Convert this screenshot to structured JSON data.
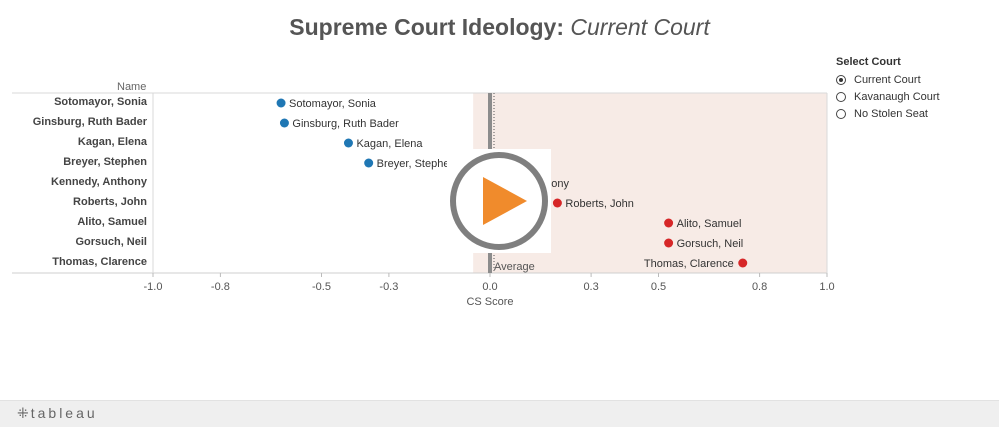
{
  "title": {
    "bold": "Supreme Court Ideology:",
    "italic": "Current Court"
  },
  "name_header": "Name",
  "legend": {
    "title": "Select Court",
    "options": [
      {
        "label": "Current Court",
        "selected": true
      },
      {
        "label": "Kavanaugh Court",
        "selected": false
      },
      {
        "label": "No Stolen Seat",
        "selected": false
      }
    ]
  },
  "footer": {
    "logo_text": "tableau"
  },
  "colors": {
    "liberal": "#1f77b4",
    "conservative": "#d62728",
    "shade": "#f7ebe6",
    "average_line": "#8c8c8c"
  },
  "chart_data": {
    "type": "scatter",
    "xlabel": "CS Score",
    "xlim": [
      -1.0,
      1.0
    ],
    "xticks": [
      -1.0,
      -0.8,
      -0.5,
      -0.3,
      0.0,
      0.3,
      0.5,
      0.8,
      1.0
    ],
    "tick_labels": [
      "-1.0",
      "-0.8",
      "-0.5",
      "-0.3",
      "0.0",
      "0.3",
      "0.5",
      "0.8",
      "1.0"
    ],
    "average_label": "Average",
    "average_value": 0.0,
    "shaded_range": [
      -0.05,
      1.0
    ],
    "points": [
      {
        "name": "Sotomayor, Sonia",
        "value": -0.62,
        "side": "liberal",
        "label": "Sotomayor, Sonia"
      },
      {
        "name": "Ginsburg, Ruth Bader",
        "value": -0.61,
        "side": "liberal",
        "label": "Ginsburg, Ruth Bader"
      },
      {
        "name": "Kagan, Elena",
        "value": -0.42,
        "side": "liberal",
        "label": "Kagan, Elena"
      },
      {
        "name": "Breyer, Stephen",
        "value": -0.36,
        "side": "liberal",
        "label": "Breyer, Stephe"
      },
      {
        "name": "Kennedy, Anthony",
        "value": 0.14,
        "side": "conservative",
        "label": "hony"
      },
      {
        "name": "Roberts, John",
        "value": 0.2,
        "side": "conservative",
        "label": "Roberts, John"
      },
      {
        "name": "Alito, Samuel",
        "value": 0.53,
        "side": "conservative",
        "label": "Alito, Samuel"
      },
      {
        "name": "Gorsuch, Neil",
        "value": 0.53,
        "side": "conservative",
        "label": "Gorsuch, Neil"
      },
      {
        "name": "Thomas, Clarence",
        "value": 0.75,
        "side": "conservative",
        "label": "Thomas, Clarence"
      }
    ]
  }
}
